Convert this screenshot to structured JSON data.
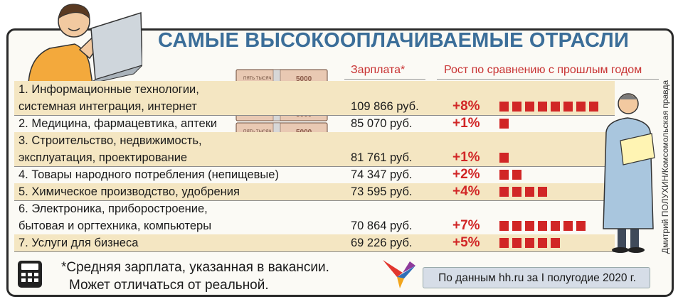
{
  "title": "САМЫЕ ВЫСОКООПЛАЧИВАЕМЫЕ ОТРАСЛИ",
  "chart_data": {
    "type": "table",
    "columns": [
      "Зарплата*",
      "Рост по сравнению с прошлым годом"
    ],
    "rows": [
      {
        "category": [
          "1. Информационные технологии,",
          "системная интеграция, интернет"
        ],
        "salary": "109 866 руб.",
        "growth_label": "+8%",
        "growth": 8
      },
      {
        "category": [
          "2. Медицина, фармацевтика, аптеки"
        ],
        "salary": "85 070 руб.",
        "growth_label": "+1%",
        "growth": 1
      },
      {
        "category": [
          "3. Строительство, недвижимость,",
          "эксплуатация, проектирование"
        ],
        "salary": "81 761 руб.",
        "growth_label": "+1%",
        "growth": 1
      },
      {
        "category": [
          "4. Товары народного потребления (непищевые)"
        ],
        "salary": "74 347 руб.",
        "growth_label": "+2%",
        "growth": 2
      },
      {
        "category": [
          "5. Химическое производство, удобрения"
        ],
        "salary": "73 595 руб.",
        "growth_label": "+4%",
        "growth": 4
      },
      {
        "category": [
          "6. Электроника, приборостроение,",
          "бытовая и оргтехника, компьютеры"
        ],
        "salary": "70 864 руб.",
        "growth_label": "+7%",
        "growth": 7
      },
      {
        "category": [
          "7. Услуги для бизнеса"
        ],
        "salary": "69 226 руб.",
        "growth_label": "+5%",
        "growth": 5
      }
    ]
  },
  "footnote": [
    "*Средняя зарплата, указанная в вакансии.",
    "Может отличаться от реальной."
  ],
  "source": "По данным hh.ru за I полугодие 2020 г.",
  "credit": "Дмитрий ПОЛУХИН/Комсомольская правда",
  "money_label": "ПЯТЬ ТЫСЯЧ",
  "money_value": "5000",
  "colors": {
    "title": "#3b6e99",
    "accent": "#d12626",
    "row_highlight": "#f4e6c2",
    "source_box": "#d6dde7"
  },
  "icons": {
    "calculator": "calculator-icon",
    "bird_logo": "bird-logo-icon"
  }
}
